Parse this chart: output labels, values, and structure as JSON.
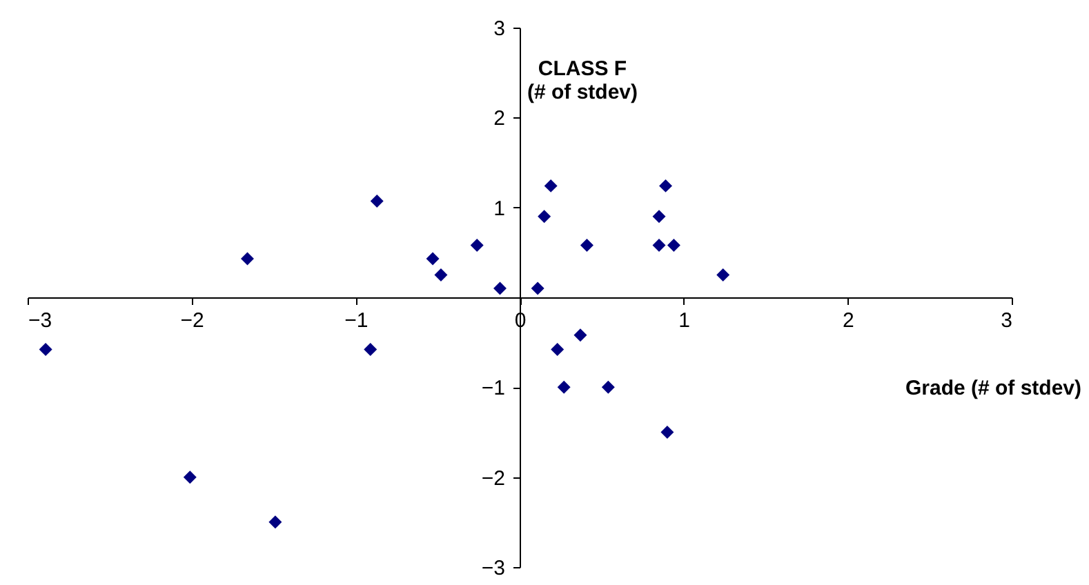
{
  "chart_data": {
    "type": "scatter",
    "ylabel": "CLASS F\n(# of stdev)",
    "xlabel": "Grade (# of stdev)",
    "x": [
      -2.89,
      -2.01,
      -1.66,
      -1.49,
      -0.87,
      -0.91,
      -0.53,
      -0.48,
      -0.26,
      -0.12,
      0.11,
      0.15,
      0.19,
      0.23,
      0.27,
      0.37,
      0.41,
      0.54,
      0.85,
      0.85,
      0.89,
      0.94,
      0.9,
      1.24
    ],
    "series": [
      {
        "color": "#000080",
        "values": [
          -0.58,
          -2.0,
          0.43,
          -2.5,
          1.07,
          -0.58,
          0.43,
          0.25,
          0.58,
          0.1,
          0.1,
          0.9,
          1.24,
          -0.58,
          -1.0,
          -0.42,
          0.58,
          -1.0,
          0.9,
          0.58,
          1.24,
          0.58,
          -1.5,
          0.25
        ]
      }
    ],
    "xlim": [
      -3,
      3
    ],
    "ylim": [
      -3,
      3
    ],
    "xticks": [
      -3,
      -2,
      -1,
      0,
      1,
      2,
      3
    ],
    "yticks": [
      -3,
      -2,
      -1,
      1,
      2,
      3
    ],
    "marker": "diamond",
    "grid": false
  }
}
